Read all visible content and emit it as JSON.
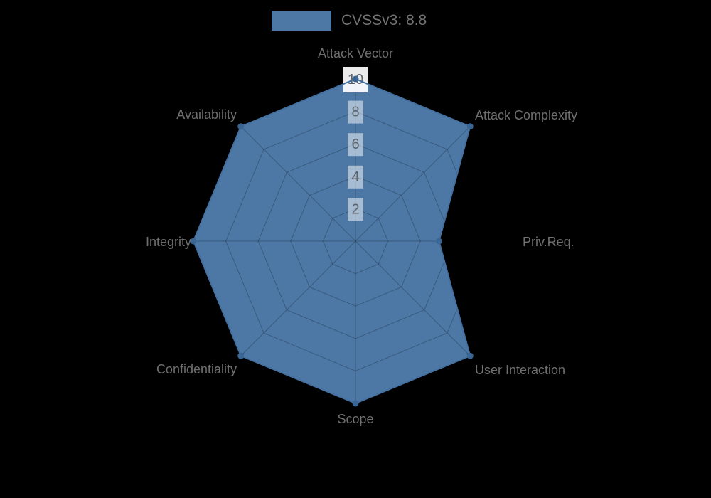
{
  "chart_data": {
    "type": "radar",
    "legend_label": "CVSSv3: 8.8",
    "categories": [
      "Attack Vector",
      "Attack Complexity",
      "Priv.Req.",
      "User Interaction",
      "Scope",
      "Confidentiality",
      "Integrity",
      "Availability"
    ],
    "series": [
      {
        "name": "CVSSv3: 8.8",
        "values": [
          10,
          10,
          5.15,
          10,
          10,
          10,
          10,
          10
        ]
      }
    ],
    "scale": {
      "min": 0,
      "max": 10,
      "tick_interval": 2,
      "ticks": [
        2,
        4,
        6,
        8,
        10
      ]
    },
    "layout_hints": {
      "legend_position": "top",
      "grid": "on",
      "axes_start": "top",
      "direction": "clockwise"
    },
    "colors": {
      "series_fill": "#4d78a6",
      "series_border": "#4470a0",
      "marker": "#3a6695",
      "gridline": "rgba(0,0,0,0.25)",
      "axis_label": "#6f6f6f",
      "tick_label": "#5c646e",
      "legend_text": "#747474",
      "background": "#000000"
    }
  }
}
